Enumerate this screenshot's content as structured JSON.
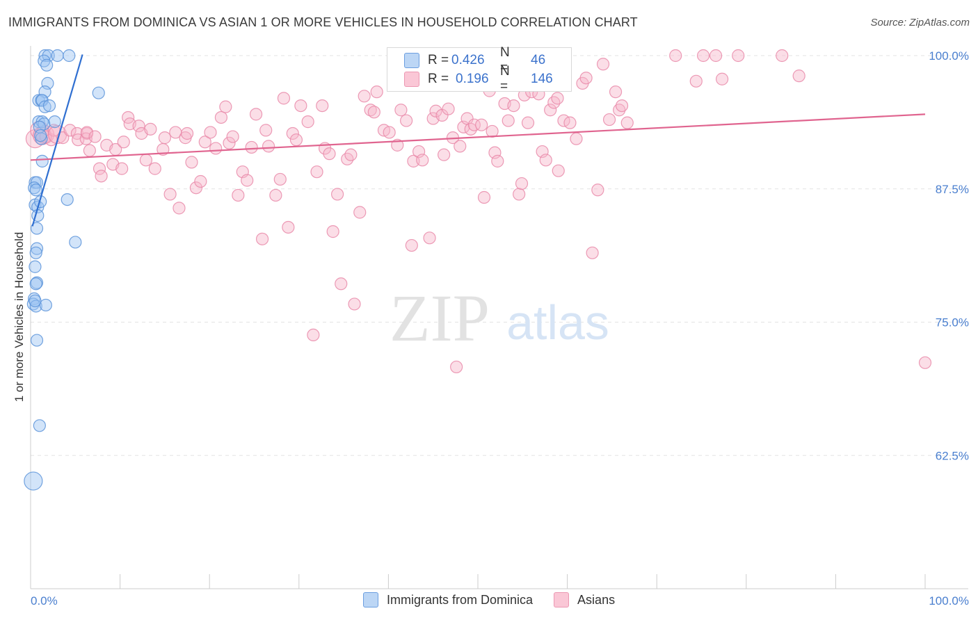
{
  "header": {
    "title": "IMMIGRANTS FROM DOMINICA VS ASIAN 1 OR MORE VEHICLES IN HOUSEHOLD CORRELATION CHART",
    "source": "Source: ZipAtlas.com"
  },
  "watermark": {
    "zip": "ZIP",
    "atlas": "atlas"
  },
  "colors": {
    "blue_fill": "#9cc3f2",
    "blue_stroke": "#5b93d9",
    "blue_line": "#2f6fd1",
    "pink_fill": "#f6b6ca",
    "pink_stroke": "#e98aa9",
    "pink_line": "#e0648f",
    "axis_text": "#4a7fcf"
  },
  "legend_top": {
    "rows": [
      {
        "r_label": "R =",
        "r_value": "0.426",
        "n_label": "N =",
        "n_value": "46",
        "color": "blue"
      },
      {
        "r_label": "R =",
        "r_value": "0.196",
        "n_label": "N =",
        "n_value": "146",
        "color": "pink"
      }
    ]
  },
  "legend_bottom": {
    "items": [
      {
        "label": "Immigrants from Dominica",
        "color": "blue"
      },
      {
        "label": "Asians",
        "color": "pink"
      }
    ]
  },
  "chart_data": {
    "type": "scatter",
    "title": "IMMIGRANTS FROM DOMINICA VS ASIAN 1 OR MORE VEHICLES IN HOUSEHOLD CORRELATION CHART",
    "xlabel": "",
    "ylabel": "1 or more Vehicles in Household",
    "xlim": [
      0,
      100
    ],
    "ylim": [
      50,
      100
    ],
    "x_tick_labels": [
      "0.0%",
      "100.0%"
    ],
    "y_ticks": [
      62.5,
      75.0,
      87.5,
      100.0
    ],
    "y_tick_labels": [
      "62.5%",
      "75.0%",
      "87.5%",
      "100.0%"
    ],
    "grid": true,
    "legend_position": "top-center",
    "series": [
      {
        "name": "Immigrants from Dominica",
        "r": 0.426,
        "n": 46,
        "trend": {
          "x": [
            0.2,
            5.8
          ],
          "y": [
            84.0,
            100.1
          ]
        },
        "points": [
          [
            1.6,
            100
          ],
          [
            2.0,
            100
          ],
          [
            3.0,
            100
          ],
          [
            4.3,
            100
          ],
          [
            1.5,
            99.5
          ],
          [
            1.8,
            99.1
          ],
          [
            1.9,
            97.4
          ],
          [
            1.6,
            96.6
          ],
          [
            0.9,
            95.8
          ],
          [
            1.2,
            95.8
          ],
          [
            1.3,
            95.8
          ],
          [
            1.6,
            95.2
          ],
          [
            2.1,
            95.3
          ],
          [
            7.6,
            96.5
          ],
          [
            0.9,
            93.8
          ],
          [
            1.3,
            93.8
          ],
          [
            1.5,
            93.6
          ],
          [
            2.7,
            93.8
          ],
          [
            1.0,
            93.3
          ],
          [
            1.2,
            92.2
          ],
          [
            1.1,
            92.5
          ],
          [
            1.3,
            90.1
          ],
          [
            0.5,
            88.1
          ],
          [
            0.7,
            88.1
          ],
          [
            0.4,
            87.6
          ],
          [
            0.6,
            87.4
          ],
          [
            0.5,
            86.0
          ],
          [
            0.8,
            85.8
          ],
          [
            1.1,
            86.3
          ],
          [
            4.1,
            86.5
          ],
          [
            0.8,
            85.0
          ],
          [
            0.7,
            83.8
          ],
          [
            5.0,
            82.5
          ],
          [
            0.7,
            81.9
          ],
          [
            0.6,
            81.5
          ],
          [
            0.5,
            80.2
          ],
          [
            0.7,
            78.7
          ],
          [
            0.6,
            78.6
          ],
          [
            0.4,
            77.2
          ],
          [
            0.3,
            76.7
          ],
          [
            0.6,
            76.5
          ],
          [
            1.7,
            76.6
          ],
          [
            0.7,
            73.3
          ],
          [
            1.0,
            65.3
          ],
          [
            0.3,
            60.1
          ],
          [
            0.5,
            77.0
          ]
        ],
        "sizes_large_idx": [
          44
        ]
      },
      {
        "name": "Asians",
        "r": 0.196,
        "n": 146,
        "trend": {
          "x": [
            0,
            100
          ],
          "y": [
            90.2,
            94.5
          ]
        },
        "points": [
          [
            0.5,
            92.2
          ],
          [
            1.0,
            93.0
          ],
          [
            1.3,
            92.5
          ],
          [
            1.6,
            92.6
          ],
          [
            1.7,
            92.4
          ],
          [
            2.3,
            92.1
          ],
          [
            2.6,
            93.0
          ],
          [
            3.0,
            92.6
          ],
          [
            3.6,
            92.3
          ],
          [
            4.4,
            93.0
          ],
          [
            5.2,
            92.7
          ],
          [
            5.3,
            92.1
          ],
          [
            6.3,
            92.7
          ],
          [
            6.6,
            91.1
          ],
          [
            6.2,
            92.2
          ],
          [
            6.3,
            92.8
          ],
          [
            7.2,
            92.4
          ],
          [
            7.7,
            89.4
          ],
          [
            7.9,
            88.7
          ],
          [
            8.5,
            91.6
          ],
          [
            9.2,
            89.8
          ],
          [
            9.5,
            91.2
          ],
          [
            10.2,
            89.4
          ],
          [
            10.4,
            91.9
          ],
          [
            10.9,
            94.2
          ],
          [
            11.1,
            93.6
          ],
          [
            12.1,
            93.4
          ],
          [
            12.4,
            92.7
          ],
          [
            12.9,
            90.2
          ],
          [
            13.4,
            93.1
          ],
          [
            13.9,
            89.4
          ],
          [
            14.8,
            91.2
          ],
          [
            15.0,
            92.3
          ],
          [
            15.6,
            87.0
          ],
          [
            16.2,
            92.8
          ],
          [
            16.6,
            85.7
          ],
          [
            17.3,
            92.3
          ],
          [
            17.5,
            92.7
          ],
          [
            18.0,
            90.0
          ],
          [
            18.5,
            87.6
          ],
          [
            19.0,
            88.2
          ],
          [
            19.5,
            91.9
          ],
          [
            20.1,
            92.8
          ],
          [
            20.7,
            91.3
          ],
          [
            21.3,
            94.2
          ],
          [
            21.8,
            95.2
          ],
          [
            22.2,
            91.8
          ],
          [
            22.6,
            92.4
          ],
          [
            23.2,
            86.9
          ],
          [
            23.7,
            89.1
          ],
          [
            24.2,
            88.3
          ],
          [
            24.7,
            91.4
          ],
          [
            25.2,
            94.5
          ],
          [
            25.9,
            82.8
          ],
          [
            26.3,
            93.0
          ],
          [
            26.6,
            91.5
          ],
          [
            27.4,
            86.9
          ],
          [
            27.9,
            88.4
          ],
          [
            28.3,
            96.0
          ],
          [
            28.8,
            83.9
          ],
          [
            29.3,
            92.7
          ],
          [
            29.7,
            92.1
          ],
          [
            30.2,
            95.3
          ],
          [
            31.0,
            93.8
          ],
          [
            31.6,
            73.8
          ],
          [
            32.0,
            89.1
          ],
          [
            32.6,
            95.3
          ],
          [
            32.9,
            91.3
          ],
          [
            33.4,
            90.8
          ],
          [
            33.8,
            83.5
          ],
          [
            34.3,
            87.0
          ],
          [
            34.7,
            78.6
          ],
          [
            35.4,
            90.3
          ],
          [
            35.8,
            90.7
          ],
          [
            36.2,
            76.7
          ],
          [
            36.8,
            85.3
          ],
          [
            37.3,
            96.2
          ],
          [
            38.0,
            94.9
          ],
          [
            38.4,
            94.7
          ],
          [
            38.7,
            96.6
          ],
          [
            39.5,
            93.0
          ],
          [
            40.1,
            92.8
          ],
          [
            41.0,
            91.6
          ],
          [
            41.4,
            94.9
          ],
          [
            42.0,
            93.9
          ],
          [
            42.6,
            82.2
          ],
          [
            42.8,
            90.1
          ],
          [
            43.4,
            91.0
          ],
          [
            43.8,
            90.2
          ],
          [
            44.6,
            82.9
          ],
          [
            45.0,
            94.1
          ],
          [
            45.3,
            94.8
          ],
          [
            46.0,
            94.4
          ],
          [
            46.2,
            90.7
          ],
          [
            46.7,
            95.0
          ],
          [
            47.2,
            92.3
          ],
          [
            47.6,
            70.8
          ],
          [
            48.0,
            91.5
          ],
          [
            48.4,
            93.3
          ],
          [
            48.8,
            94.1
          ],
          [
            49.2,
            93.1
          ],
          [
            49.6,
            93.5
          ],
          [
            50.4,
            93.5
          ],
          [
            50.7,
            86.7
          ],
          [
            51.3,
            96.7
          ],
          [
            51.6,
            92.9
          ],
          [
            51.9,
            90.9
          ],
          [
            52.2,
            90.1
          ],
          [
            53.0,
            95.5
          ],
          [
            53.4,
            93.9
          ],
          [
            54.0,
            95.3
          ],
          [
            54.6,
            87.0
          ],
          [
            54.9,
            88.0
          ],
          [
            55.2,
            96.3
          ],
          [
            55.6,
            93.7
          ],
          [
            56.0,
            96.6
          ],
          [
            56.8,
            96.4
          ],
          [
            57.2,
            91.0
          ],
          [
            57.6,
            90.2
          ],
          [
            58.1,
            94.9
          ],
          [
            58.5,
            95.6
          ],
          [
            58.9,
            96.0
          ],
          [
            59.0,
            89.2
          ],
          [
            59.6,
            93.9
          ],
          [
            60.3,
            93.7
          ],
          [
            61.0,
            92.2
          ],
          [
            61.7,
            97.4
          ],
          [
            62.1,
            97.9
          ],
          [
            62.8,
            81.5
          ],
          [
            63.4,
            87.4
          ],
          [
            64.0,
            99.2
          ],
          [
            64.7,
            94.0
          ],
          [
            65.4,
            96.6
          ],
          [
            65.8,
            94.9
          ],
          [
            66.1,
            95.3
          ],
          [
            66.7,
            93.7
          ],
          [
            72.1,
            100
          ],
          [
            75.2,
            100
          ],
          [
            76.6,
            100
          ],
          [
            79.1,
            100
          ],
          [
            84.0,
            100
          ],
          [
            77.3,
            97.8
          ],
          [
            74.4,
            97.6
          ],
          [
            85.9,
            98.1
          ],
          [
            100,
            71.2
          ]
        ],
        "sizes_large_idx": [
          0,
          1,
          2,
          3,
          7
        ]
      }
    ]
  }
}
